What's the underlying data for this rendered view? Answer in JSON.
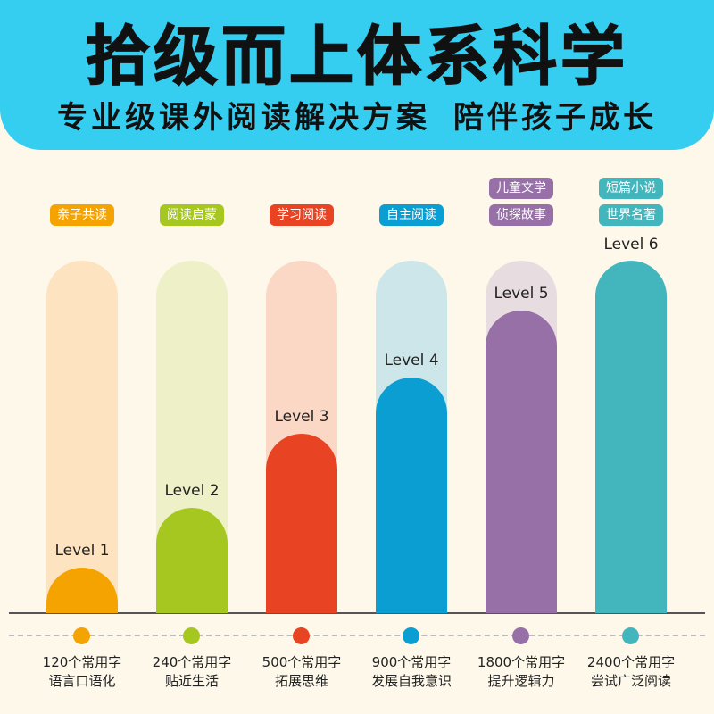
{
  "header": {
    "title": "拾级而上体系科学",
    "subtitle_left": "专业级课外阅读解决方案",
    "subtitle_right": "陪伴孩子成长"
  },
  "levels": [
    {
      "label": "Level 1",
      "tags": [
        "亲子共读"
      ],
      "chars": "120个常用字",
      "skill": "语言口语化",
      "color": "#f4a300",
      "track_color": "#fde3bf",
      "fill": 0.13
    },
    {
      "label": "Level 2",
      "tags": [
        "阅读启蒙"
      ],
      "chars": "240个常用字",
      "skill": "贴近生活",
      "color": "#a5c71f",
      "track_color": "#eef0c8",
      "fill": 0.3
    },
    {
      "label": "Level 3",
      "tags": [
        "学习阅读"
      ],
      "chars": "500个常用字",
      "skill": "拓展思维",
      "color": "#e84322",
      "track_color": "#fbd7c6",
      "fill": 0.51
    },
    {
      "label": "Level 4",
      "tags": [
        "自主阅读"
      ],
      "chars": "900个常用字",
      "skill": "发展自我意识",
      "color": "#0b9ed2",
      "track_color": "#cde6e9",
      "fill": 0.67
    },
    {
      "label": "Level 5",
      "tags": [
        "儿童文学",
        "侦探故事"
      ],
      "chars": "1800个常用字",
      "skill": "提升逻辑力",
      "color": "#9670a6",
      "track_color": "#e7dde0",
      "fill": 0.86
    },
    {
      "label": "Level 6",
      "tags": [
        "短篇小说",
        "世界名著"
      ],
      "chars": "2400个常用字",
      "skill": "尝试广泛阅读",
      "color": "#43b6bd",
      "track_color": "#43b6bd",
      "fill": 1.0
    }
  ]
}
